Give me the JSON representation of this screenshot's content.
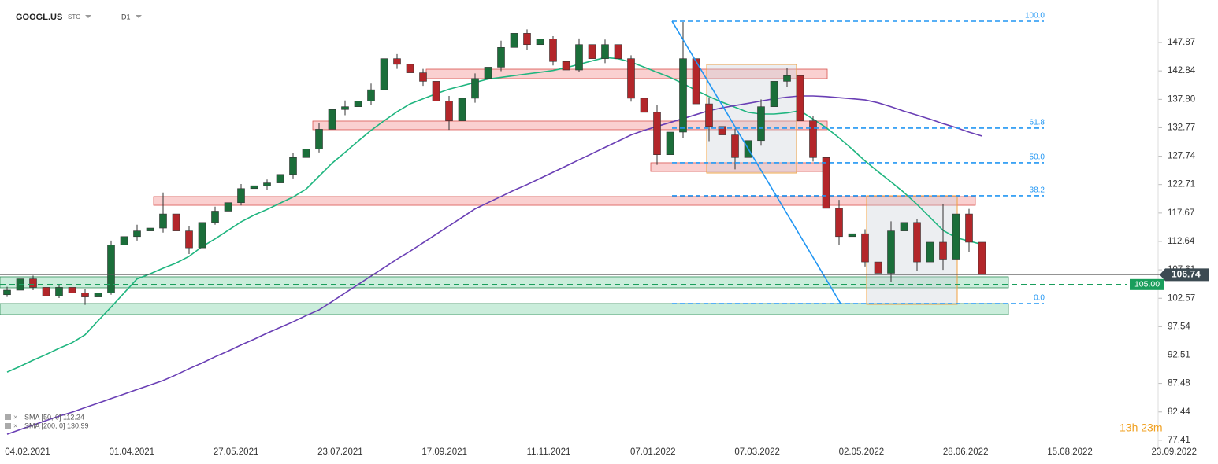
{
  "chart_data": {
    "type": "candlestick",
    "title": "GOOGL.US",
    "subtitle": "STC",
    "interval": "D1",
    "timer": "13h 23m",
    "ylim": [
      76.0,
      155.4
    ],
    "yticks": [
      147.87,
      142.84,
      {
        "value": 137.8,
        "label": "137.80"
      },
      132.77,
      127.74,
      122.71,
      117.67,
      112.64,
      107.61,
      102.57,
      97.54,
      92.51,
      87.48,
      82.44,
      77.41
    ],
    "xticks": [
      "04.02.2021",
      "01.04.2021",
      "27.05.2021",
      "23.07.2021",
      "17.09.2021",
      "11.11.2021",
      "07.01.2022",
      "07.03.2022",
      "02.05.2022",
      "28.06.2022",
      "15.08.2022",
      "23.09.2022"
    ],
    "up_color": "#1b6e3a",
    "down_color": "#b3262a",
    "open": [
      103.2,
      104.0,
      106.0,
      104.5,
      103.0,
      104.5,
      103.5,
      102.8,
      103.5,
      112.0,
      113.5,
      114.5,
      115.0,
      117.5,
      114.5,
      111.5,
      116.0,
      118.0,
      119.5,
      122.0,
      122.5,
      123.0,
      124.5,
      127.5,
      129.0,
      132.5,
      136.0,
      136.5,
      137.5,
      139.5,
      145.0,
      144.0,
      142.5,
      141.0,
      137.5,
      134.0,
      138.0,
      141.5,
      143.5,
      147.0,
      149.5,
      147.5,
      148.5,
      144.5,
      143.0,
      147.5,
      145.0,
      147.5,
      145.0,
      138.0,
      135.5,
      128.0,
      132.0,
      145.0,
      137.0,
      133.0,
      131.5,
      127.5,
      130.5,
      136.5,
      141.0,
      142.0,
      134.0,
      127.5,
      118.5,
      113.5,
      114.0,
      109.0,
      107.0,
      114.5,
      116.0,
      109.0,
      112.5,
      109.5,
      117.5,
      112.5
    ],
    "high": [
      104.6,
      107.2,
      106.6,
      105.2,
      105.0,
      105.3,
      104.2,
      104.4,
      112.8,
      114.6,
      115.6,
      116.2,
      121.3,
      118.0,
      115.3,
      116.8,
      118.8,
      120.3,
      122.8,
      123.4,
      123.6,
      125.2,
      128.3,
      130.2,
      133.6,
      137.0,
      137.6,
      138.4,
      140.6,
      146.2,
      145.8,
      144.8,
      143.2,
      141.8,
      138.4,
      138.8,
      142.4,
      144.6,
      148.2,
      150.6,
      150.2,
      149.6,
      149.0,
      144.6,
      148.6,
      148.0,
      148.4,
      148.2,
      145.6,
      139.2,
      136.8,
      133.8,
      151.5,
      145.6,
      138.0,
      136.0,
      132.6,
      131.6,
      137.8,
      142.4,
      143.4,
      142.6,
      134.8,
      128.6,
      120.0,
      116.0,
      114.8,
      110.2,
      116.2,
      119.8,
      116.6,
      113.8,
      119.2,
      119.5,
      118.4,
      114.2
    ],
    "low": [
      102.8,
      103.6,
      104.0,
      102.2,
      102.6,
      102.6,
      101.4,
      102.2,
      103.2,
      111.6,
      112.8,
      113.6,
      114.2,
      113.8,
      110.4,
      110.8,
      115.6,
      117.2,
      119.0,
      121.4,
      121.8,
      122.4,
      123.8,
      126.6,
      128.4,
      131.8,
      135.0,
      135.6,
      136.8,
      139.0,
      143.2,
      141.8,
      140.2,
      136.2,
      132.4,
      133.4,
      137.2,
      140.6,
      142.8,
      146.2,
      146.6,
      146.8,
      143.8,
      141.8,
      142.6,
      144.0,
      144.2,
      144.2,
      137.4,
      134.2,
      126.2,
      126.8,
      131.0,
      136.0,
      130.4,
      127.2,
      125.4,
      125.2,
      129.6,
      135.8,
      140.0,
      133.2,
      126.8,
      117.6,
      112.0,
      110.6,
      108.2,
      102.0,
      105.4,
      113.0,
      107.4,
      108.0,
      107.6,
      108.6,
      110.8,
      105.8
    ],
    "close": [
      104.0,
      106.0,
      104.5,
      103.0,
      104.5,
      103.5,
      102.8,
      103.5,
      112.0,
      113.5,
      114.5,
      115.0,
      117.5,
      114.5,
      111.5,
      116.0,
      118.0,
      119.5,
      122.0,
      122.5,
      123.0,
      124.5,
      127.5,
      129.0,
      132.5,
      136.0,
      136.5,
      137.5,
      139.5,
      145.0,
      144.0,
      142.5,
      141.0,
      137.5,
      134.0,
      138.0,
      141.5,
      143.5,
      147.0,
      149.5,
      147.5,
      148.5,
      144.5,
      143.0,
      147.5,
      145.0,
      147.5,
      145.0,
      138.0,
      135.5,
      128.0,
      132.0,
      145.0,
      137.0,
      133.0,
      131.5,
      127.5,
      130.5,
      136.5,
      141.0,
      142.0,
      134.0,
      127.5,
      118.5,
      113.5,
      114.0,
      109.0,
      107.0,
      114.5,
      116.0,
      109.0,
      112.5,
      109.5,
      117.5,
      112.5,
      106.74
    ],
    "series": [
      {
        "name": "SMA [50, 0] 112.24",
        "color": "#1fb57f",
        "values": [
          89.5,
          90.5,
          91.6,
          92.6,
          93.7,
          94.7,
          96.1,
          98.6,
          101.0,
          103.5,
          106.0,
          106.9,
          107.9,
          108.8,
          110.0,
          111.7,
          113.1,
          114.6,
          116.1,
          117.3,
          118.3,
          119.4,
          120.5,
          121.9,
          124.2,
          126.5,
          128.4,
          130.4,
          132.3,
          134.0,
          135.6,
          137.0,
          137.9,
          138.8,
          139.6,
          140.2,
          140.8,
          141.4,
          141.7,
          142.0,
          142.3,
          142.6,
          142.9,
          143.4,
          144.0,
          144.6,
          145.2,
          145.0,
          144.4,
          143.5,
          142.6,
          141.7,
          140.6,
          139.4,
          138.3,
          137.3,
          136.4,
          135.5,
          135.2,
          135.2,
          135.4,
          135.8,
          134.3,
          132.8,
          131.0,
          129.0,
          126.9,
          125.0,
          123.2,
          121.3,
          119.2,
          116.9,
          114.6,
          113.3,
          112.7,
          112.1
        ]
      },
      {
        "name": "SMA [200, 0] 130.99",
        "color": "#6a3fb5",
        "values": [
          78.5,
          79.3,
          80.1,
          80.9,
          81.7,
          82.4,
          83.2,
          84.0,
          84.8,
          85.6,
          86.4,
          87.2,
          88.0,
          89.0,
          90.1,
          91.1,
          92.2,
          93.2,
          94.3,
          95.3,
          96.4,
          97.4,
          98.4,
          99.5,
          100.5,
          102.0,
          103.5,
          105.0,
          106.5,
          108.0,
          109.5,
          110.9,
          112.4,
          113.9,
          115.4,
          116.9,
          118.4,
          119.5,
          120.6,
          121.7,
          122.7,
          123.8,
          124.9,
          126.0,
          127.1,
          128.2,
          129.3,
          130.4,
          131.5,
          132.3,
          133.0,
          133.7,
          134.4,
          135.1,
          135.8,
          136.3,
          136.7,
          137.1,
          137.5,
          137.9,
          138.2,
          138.4,
          138.4,
          138.3,
          138.1,
          137.9,
          137.7,
          137.2,
          136.5,
          135.7,
          135.0,
          134.3,
          133.5,
          132.8,
          132.0,
          131.3
        ]
      }
    ],
    "zones": [
      {
        "low": 141.47,
        "high": 143.14,
        "color": "red"
      },
      {
        "low": 132.42,
        "high": 133.95,
        "color": "red"
      },
      {
        "low": 125.03,
        "high": 126.57,
        "color": "red"
      },
      {
        "low": 119.04,
        "high": 120.58,
        "color": "red"
      },
      {
        "low": 104.42,
        "high": 106.37,
        "color": "green"
      },
      {
        "low": 99.68,
        "high": 101.63,
        "color": "green"
      }
    ],
    "range_boxes": [
      {
        "high": 143.98,
        "low": 124.76
      },
      {
        "high": 120.72,
        "low": 101.49
      }
    ],
    "fib_levels": [
      {
        "label": "100.0",
        "price": 151.64
      },
      {
        "label": "61.8",
        "price": 132.7
      },
      {
        "label": "50.0",
        "price": 126.57
      },
      {
        "label": "38.2",
        "price": 120.72
      },
      {
        "label": "0.0",
        "price": 101.63
      }
    ],
    "trendline": {
      "from": 151.64,
      "to": 101.63
    },
    "alert_level": {
      "value": 105.0,
      "label": "105.00"
    },
    "last_price": 106.74
  }
}
